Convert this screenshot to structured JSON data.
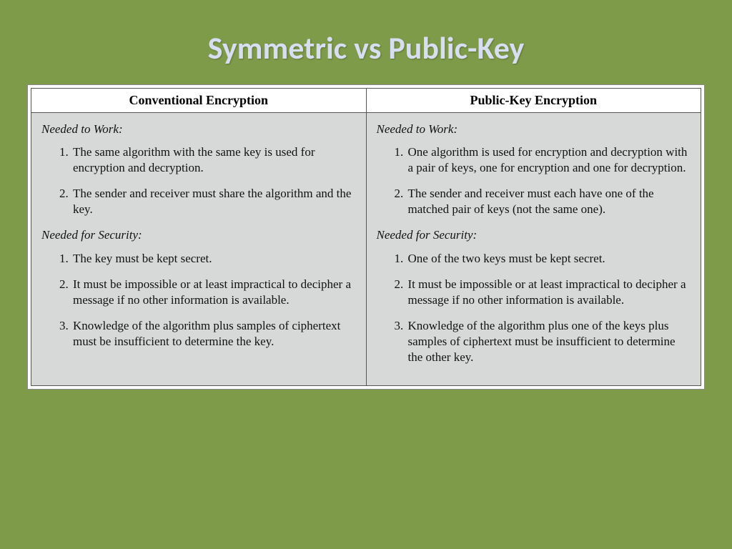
{
  "colors": {
    "slide_bg": "#7e9b4a",
    "title_color": "#d7deef",
    "table_outer_bg": "#ffffff",
    "cell_bg": "#d6d9d7",
    "border_color": "#555555",
    "text_color": "#111111"
  },
  "typography": {
    "title_font": "Calibri",
    "title_size_pt": 33,
    "title_weight": "bold",
    "body_font": "Times New Roman",
    "body_size_pt": 13,
    "header_weight": "bold",
    "section_style": "italic"
  },
  "title": "Symmetric vs Public-Key",
  "table": {
    "columns": [
      {
        "header": "Conventional Encryption"
      },
      {
        "header": "Public-Key Encryption"
      }
    ],
    "left": {
      "section1_heading": "Needed to Work:",
      "section1_items": [
        "The same algorithm with the same key is used for encryption and decryption.",
        "The sender and receiver must share the algorithm and the key."
      ],
      "section2_heading": "Needed for Security:",
      "section2_items": [
        "The key must be kept secret.",
        "It must be impossible or at least impractical to decipher a message if no other information is available.",
        "Knowledge of the algorithm plus samples of ciphertext must be insufficient to determine the key."
      ]
    },
    "right": {
      "section1_heading": "Needed to Work:",
      "section1_items": [
        "One algorithm is used for encryption and decryption with a pair of keys, one for encryption and one for decryption.",
        "The sender and receiver must each have one of the matched pair of keys (not the same one)."
      ],
      "section2_heading": "Needed for Security:",
      "section2_items": [
        "One of the two keys must be kept secret.",
        "It must be impossible or at least impractical to decipher a message if no other information is available.",
        "Knowledge of the algorithm plus one of the keys plus samples of ciphertext must be insufficient to determine the other key."
      ]
    }
  }
}
